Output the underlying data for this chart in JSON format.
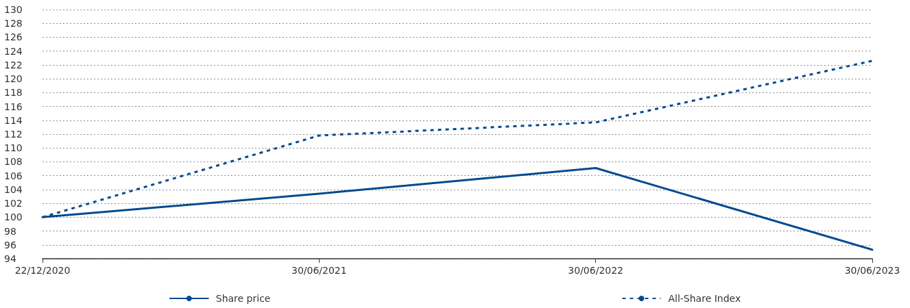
{
  "chart_data": {
    "type": "line",
    "categories": [
      "22/12/2020",
      "30/06/2021",
      "30/06/2022",
      "30/06/2023"
    ],
    "series": [
      {
        "name": "Share price",
        "color": "#004a8f",
        "values": [
          100,
          103.4,
          107.1,
          95.3
        ],
        "line_style": "solid"
      },
      {
        "name": "All-Share Index",
        "color": "#004a8f",
        "values": [
          100,
          111.8,
          113.7,
          122.6
        ],
        "line_style": "dashed"
      }
    ],
    "ylim": [
      94,
      130
    ],
    "yticks": [
      94,
      96,
      98,
      100,
      102,
      104,
      106,
      108,
      110,
      112,
      114,
      116,
      118,
      120,
      122,
      124,
      126,
      128,
      130
    ],
    "grid": "y",
    "legend": "bottom",
    "marker": "none"
  }
}
